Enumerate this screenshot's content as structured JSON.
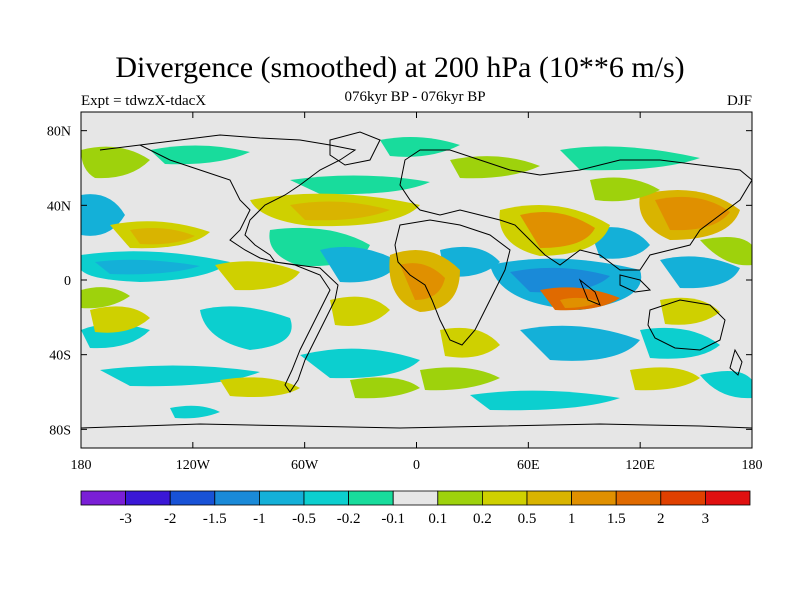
{
  "title": "Divergence (smoothed) at 200 hPa (10**6 m/s)",
  "experiment_label": "Expt = tdwzX-tdacX",
  "period_label": "076kyr BP - 076kyr BP",
  "season_label": "DJF",
  "map": {
    "lon_range": [
      -180,
      180
    ],
    "lat_range": [
      -90,
      90
    ],
    "background_color": "#e6e6e6",
    "lon_ticks": [
      {
        "lon": -180,
        "label": "180"
      },
      {
        "lon": -120,
        "label": "120W"
      },
      {
        "lon": -60,
        "label": "60W"
      },
      {
        "lon": 0,
        "label": "0"
      },
      {
        "lon": 60,
        "label": "60E"
      },
      {
        "lon": 120,
        "label": "120E"
      },
      {
        "lon": 180,
        "label": "180"
      }
    ],
    "lat_ticks": [
      {
        "lat": 80,
        "label": "80N"
      },
      {
        "lat": 40,
        "label": "40N"
      },
      {
        "lat": 0,
        "label": "0"
      },
      {
        "lat": -40,
        "label": "40S"
      },
      {
        "lat": -80,
        "label": "80S"
      }
    ]
  },
  "colorbar": {
    "colors": [
      "#7a1fd6",
      "#3a17d6",
      "#1852d6",
      "#1a8ad8",
      "#14b0d8",
      "#0ccfcf",
      "#18dc9c",
      "#e6e6e6",
      "#9ed20c",
      "#cfd000",
      "#d9b400",
      "#e09000",
      "#e06a00",
      "#e04000",
      "#e01010"
    ],
    "labels": [
      "-3",
      "-2",
      "-1.5",
      "-1",
      "-0.5",
      "-0.2",
      "-0.1",
      "0.1",
      "0.2",
      "0.5",
      "1",
      "1.5",
      "2",
      "3"
    ]
  }
}
